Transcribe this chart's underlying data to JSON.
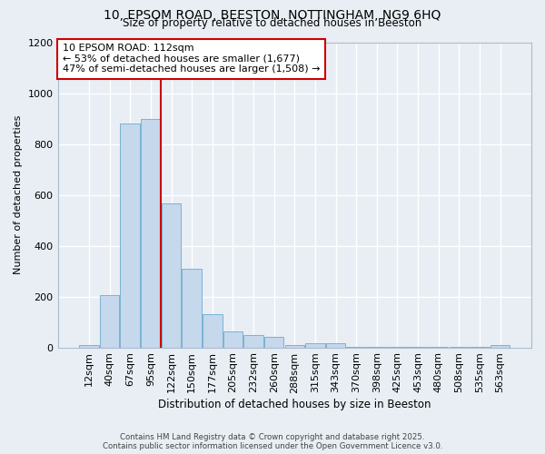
{
  "title_line1": "10, EPSOM ROAD, BEESTON, NOTTINGHAM, NG9 6HQ",
  "title_line2": "Size of property relative to detached houses in Beeston",
  "xlabel": "Distribution of detached houses by size in Beeston",
  "ylabel": "Number of detached properties",
  "footer_line1": "Contains HM Land Registry data © Crown copyright and database right 2025.",
  "footer_line2": "Contains public sector information licensed under the Open Government Licence v3.0.",
  "bar_labels": [
    "12sqm",
    "40sqm",
    "67sqm",
    "95sqm",
    "122sqm",
    "150sqm",
    "177sqm",
    "205sqm",
    "232sqm",
    "260sqm",
    "288sqm",
    "315sqm",
    "343sqm",
    "370sqm",
    "398sqm",
    "425sqm",
    "453sqm",
    "480sqm",
    "508sqm",
    "535sqm",
    "563sqm"
  ],
  "bar_values": [
    10,
    205,
    880,
    900,
    565,
    310,
    130,
    62,
    47,
    42,
    10,
    18,
    18,
    2,
    2,
    2,
    2,
    2,
    2,
    2,
    8
  ],
  "bar_color": "#c5d8ec",
  "bar_edgecolor": "#7ab3d5",
  "ylim": [
    0,
    1200
  ],
  "yticks": [
    0,
    200,
    400,
    600,
    800,
    1000,
    1200
  ],
  "property_label": "10 EPSOM ROAD: 112sqm",
  "annotation_line2": "← 53% of detached houses are smaller (1,677)",
  "annotation_line3": "47% of semi-detached houses are larger (1,508) →",
  "vline_color": "#cc0000",
  "vline_x": 3.5,
  "annotation_box_color": "#ffffff",
  "annotation_box_edgecolor": "#cc0000",
  "background_color": "#e8eef4",
  "grid_color": "#ffffff",
  "fig_width": 6.0,
  "fig_height": 5.0,
  "dpi": 100
}
